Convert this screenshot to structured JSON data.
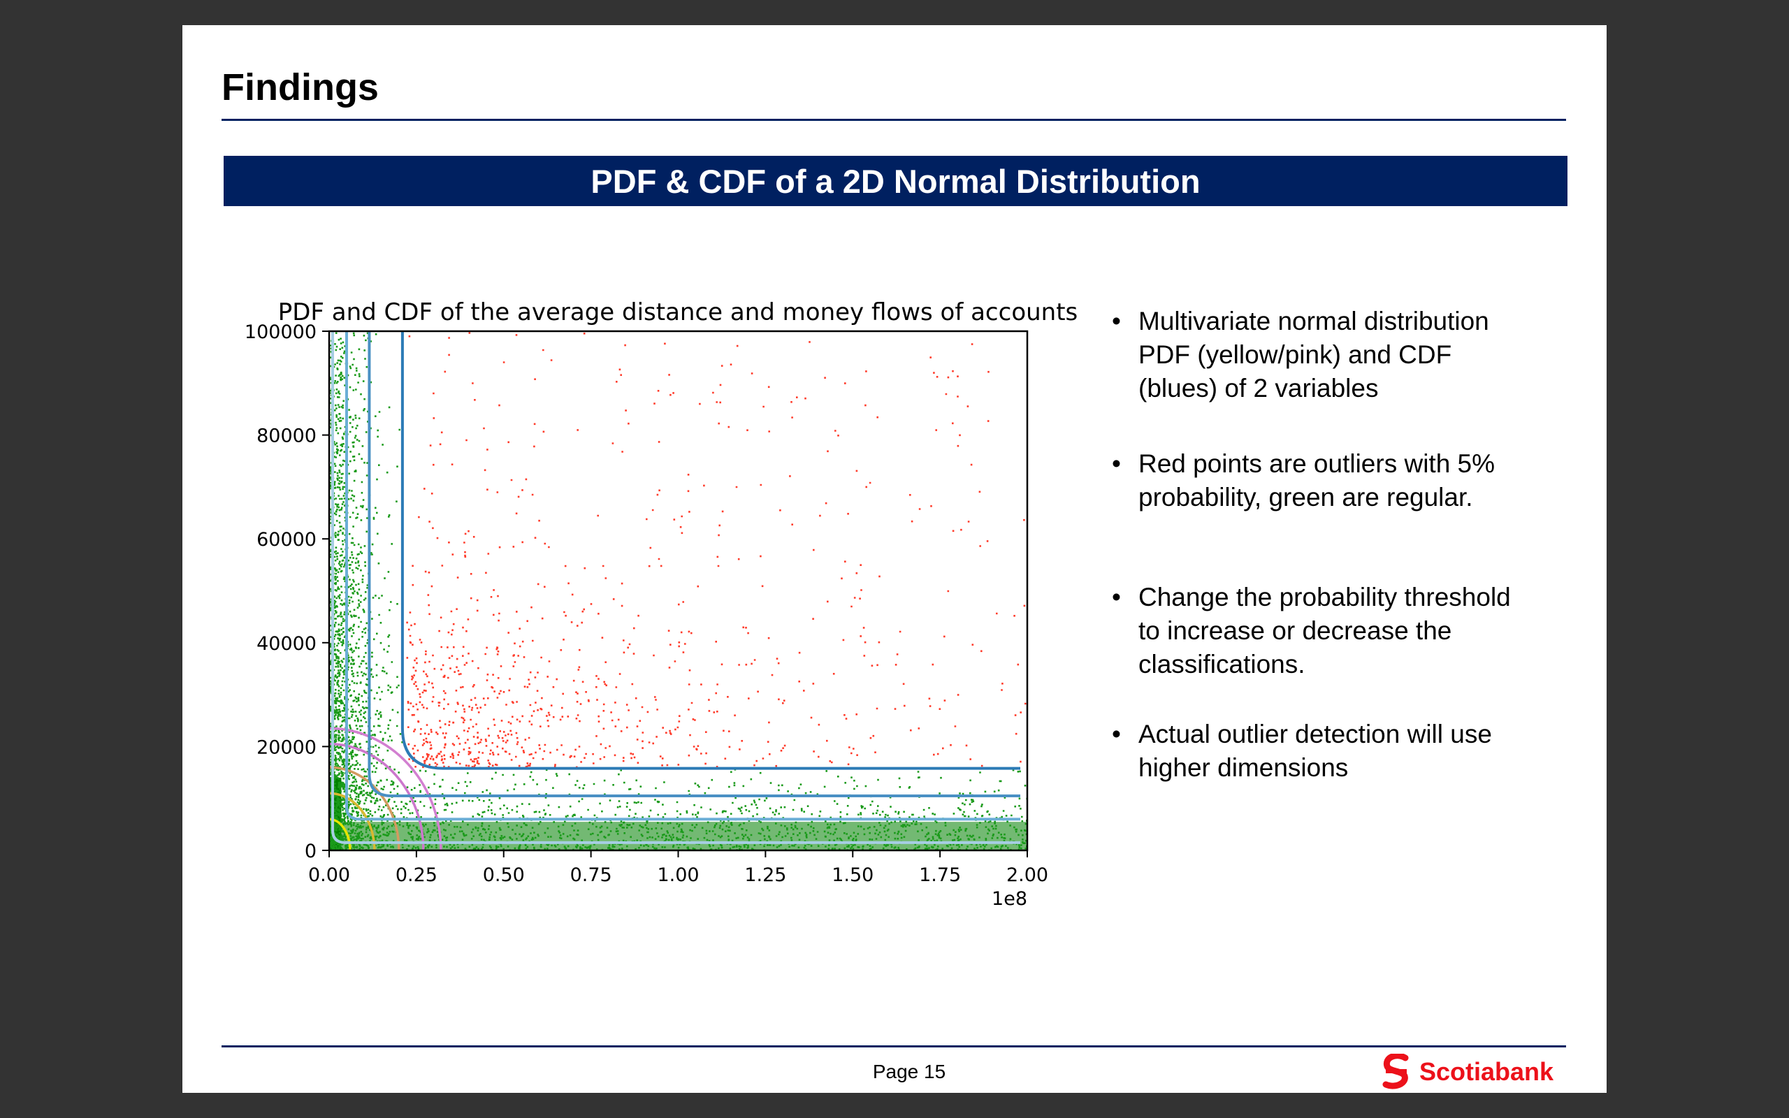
{
  "slide": {
    "title": "Findings",
    "banner": "PDF & CDF of a 2D Normal Distribution",
    "page_label": "Page 15",
    "brand": "Scotiabank",
    "brand_color": "#EC111A",
    "accent_color": "#002060"
  },
  "bullets": [
    {
      "lines": [
        "Multivariate normal distribution",
        "PDF (yellow/pink) and CDF",
        "(blues) of 2 variables"
      ]
    },
    {
      "lines": [
        "Red points are outliers with 5%",
        "probability, green are regular."
      ]
    },
    {
      "lines": [
        "Change the probability threshold",
        "to increase or decrease the",
        "classifications."
      ]
    },
    {
      "lines": [
        "Actual outlier detection will use",
        "higher dimensions"
      ]
    }
  ],
  "chart_data": {
    "type": "scatter",
    "title": "PDF and CDF of the average distance and money flows of accounts",
    "xlabel": "",
    "ylabel": "",
    "x_offset_label": "1e8",
    "xlim": [
      0,
      2.0
    ],
    "ylim": [
      0,
      100000
    ],
    "x_ticks": [
      0.0,
      0.25,
      0.5,
      0.75,
      1.0,
      1.25,
      1.5,
      1.75,
      2.0
    ],
    "x_tick_labels": [
      "0.00",
      "0.25",
      "0.50",
      "0.75",
      "1.00",
      "1.25",
      "1.50",
      "1.75",
      "2.00"
    ],
    "y_ticks": [
      0,
      20000,
      40000,
      60000,
      80000,
      100000
    ],
    "y_tick_labels": [
      "0",
      "20000",
      "40000",
      "60000",
      "80000",
      "100000"
    ],
    "grid": false,
    "series": [
      {
        "name": "",
        "kind": "regular points",
        "color": "#1a9a1a",
        "dense_color": "#008000"
      },
      {
        "name": "",
        "kind": "outlier points",
        "color": "#ff3b2a"
      }
    ],
    "cdf_contours": [
      {
        "x_asym": 0.01,
        "y_asym": 1500,
        "color": "#a6cee3"
      },
      {
        "x_asym": 0.05,
        "y_asym": 6000,
        "color": "#6baed6"
      },
      {
        "x_asym": 0.115,
        "y_asym": 10500,
        "color": "#4a90c4"
      },
      {
        "x_asym": 0.21,
        "y_asym": 15800,
        "color": "#2c7bb6"
      }
    ],
    "pdf_contours": [
      {
        "rx": 0.06,
        "ry": 6000,
        "color": "#e6e600"
      },
      {
        "rx": 0.13,
        "ry": 11000,
        "color": "#d8b830"
      },
      {
        "rx": 0.2,
        "ry": 16000,
        "color": "#d49a60"
      },
      {
        "rx": 0.27,
        "ry": 20500,
        "color": "#cc77cc"
      },
      {
        "rx": 0.32,
        "ry": 23500,
        "color": "#d27fd0"
      }
    ]
  }
}
